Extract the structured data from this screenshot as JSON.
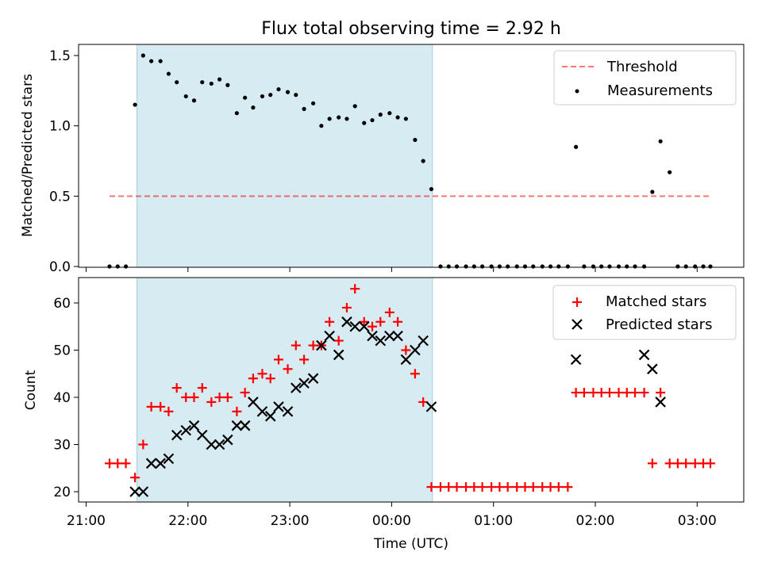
{
  "chart_data": [
    {
      "type": "scatter",
      "title": "Flux total observing time = 2.92 h",
      "xlabel": "",
      "ylabel": "Matched/Predicted stars",
      "ylim": [
        0,
        1.6
      ],
      "yticks": [
        0.0,
        0.5,
        1.0,
        1.5
      ],
      "ytick_labels": [
        "0.0",
        "0.5",
        "1.0",
        "1.5"
      ],
      "x_unit": "hours after 21:00 UTC",
      "shaded_region": [
        0.5,
        3.4
      ],
      "threshold": {
        "name": "Threshold",
        "value": 0.5,
        "x_range": [
          0.23,
          6.13
        ]
      },
      "legend": [
        "Threshold",
        "Measurements"
      ],
      "legend_position": "upper right",
      "series": [
        {
          "name": "Measurements",
          "x": [
            0.23,
            0.31,
            0.39,
            0.48,
            0.56,
            0.64,
            0.73,
            0.81,
            0.89,
            0.98,
            1.06,
            1.14,
            1.23,
            1.31,
            1.39,
            1.48,
            1.56,
            1.64,
            1.73,
            1.81,
            1.89,
            1.98,
            2.06,
            2.14,
            2.23,
            2.31,
            2.39,
            2.48,
            2.56,
            2.64,
            2.73,
            2.81,
            2.89,
            2.98,
            3.06,
            3.14,
            3.23,
            3.31,
            3.39,
            3.48,
            3.56,
            3.64,
            3.73,
            3.81,
            3.89,
            3.98,
            4.06,
            4.14,
            4.23,
            4.31,
            4.39,
            4.48,
            4.56,
            4.64,
            4.73,
            4.81,
            4.89,
            4.98,
            5.06,
            5.14,
            5.23,
            5.31,
            5.39,
            5.48,
            5.56,
            5.64,
            5.73,
            5.81,
            5.89,
            5.98,
            6.06,
            6.13
          ],
          "y": [
            0,
            0,
            0,
            1.15,
            1.5,
            1.46,
            1.46,
            1.37,
            1.31,
            1.21,
            1.18,
            1.31,
            1.3,
            1.33,
            1.29,
            1.09,
            1.2,
            1.13,
            1.21,
            1.22,
            1.26,
            1.24,
            1.22,
            1.12,
            1.16,
            1.0,
            1.05,
            1.06,
            1.05,
            1.14,
            1.02,
            1.04,
            1.08,
            1.09,
            1.06,
            1.05,
            0.9,
            0.75,
            0.55,
            0,
            0,
            0,
            0,
            0,
            0,
            0,
            0,
            0,
            0,
            0,
            0,
            0,
            0,
            0,
            0,
            0.85,
            0,
            0,
            0,
            0,
            0,
            0,
            0,
            0,
            0.53,
            0.89,
            0.67,
            0,
            0,
            0,
            0,
            0
          ]
        }
      ]
    },
    {
      "type": "scatter",
      "title": "",
      "xlabel": "Time (UTC)",
      "ylabel": "Count",
      "ylim": [
        18,
        65
      ],
      "yticks": [
        20,
        30,
        40,
        50,
        60
      ],
      "ytick_labels": [
        "20",
        "30",
        "40",
        "50",
        "60"
      ],
      "x_range_hours": [
        -0.07,
        6.45
      ],
      "xticks": [
        0,
        1,
        2,
        3,
        4,
        5,
        6
      ],
      "xtick_labels": [
        "21:00",
        "22:00",
        "23:00",
        "00:00",
        "01:00",
        "02:00",
        "03:00"
      ],
      "x_unit": "hours after 21:00 UTC",
      "shaded_region": [
        0.5,
        3.4
      ],
      "legend": [
        "Matched stars",
        "Predicted stars"
      ],
      "legend_position": "upper right",
      "series": [
        {
          "name": "Matched stars",
          "x": [
            0.23,
            0.31,
            0.39,
            0.48,
            0.56,
            0.64,
            0.73,
            0.81,
            0.89,
            0.98,
            1.06,
            1.14,
            1.23,
            1.31,
            1.39,
            1.48,
            1.56,
            1.64,
            1.73,
            1.81,
            1.89,
            1.98,
            2.06,
            2.14,
            2.23,
            2.31,
            2.39,
            2.48,
            2.56,
            2.64,
            2.73,
            2.81,
            2.89,
            2.98,
            3.06,
            3.14,
            3.23,
            3.31,
            3.39,
            3.48,
            3.56,
            3.64,
            3.73,
            3.81,
            3.89,
            3.98,
            4.06,
            4.14,
            4.23,
            4.31,
            4.39,
            4.48,
            4.56,
            4.64,
            4.73,
            4.81,
            4.89,
            4.98,
            5.06,
            5.14,
            5.23,
            5.31,
            5.39,
            5.48,
            5.56,
            5.64,
            5.73,
            5.81,
            5.89,
            5.98,
            6.06,
            6.13
          ],
          "y": [
            26,
            26,
            26,
            23,
            30,
            38,
            38,
            37,
            42,
            40,
            40,
            42,
            39,
            40,
            40,
            37,
            41,
            44,
            45,
            44,
            48,
            46,
            51,
            48,
            51,
            51,
            56,
            52,
            59,
            63,
            56,
            55,
            56,
            58,
            56,
            50,
            45,
            39,
            21,
            21,
            21,
            21,
            21,
            21,
            21,
            21,
            21,
            21,
            21,
            21,
            21,
            21,
            21,
            21,
            21,
            41,
            41,
            41,
            41,
            41,
            41,
            41,
            41,
            41,
            26,
            41,
            26,
            26,
            26,
            26,
            26,
            26
          ]
        },
        {
          "name": "Predicted stars",
          "x": [
            0.48,
            0.56,
            0.64,
            0.73,
            0.81,
            0.89,
            0.98,
            1.06,
            1.14,
            1.23,
            1.31,
            1.39,
            1.48,
            1.56,
            1.64,
            1.73,
            1.81,
            1.89,
            1.98,
            2.06,
            2.14,
            2.23,
            2.31,
            2.39,
            2.48,
            2.56,
            2.64,
            2.73,
            2.81,
            2.89,
            2.98,
            3.06,
            3.14,
            3.23,
            3.31,
            3.39,
            4.81,
            5.48,
            5.56,
            5.64
          ],
          "y": [
            20,
            20,
            26,
            26,
            27,
            32,
            33,
            34,
            32,
            30,
            30,
            31,
            34,
            34,
            39,
            37,
            36,
            38,
            37,
            42,
            43,
            44,
            51,
            53,
            49,
            56,
            55,
            55,
            53,
            52,
            53,
            53,
            48,
            50,
            52,
            38,
            48,
            49,
            46,
            39
          ]
        }
      ]
    }
  ]
}
